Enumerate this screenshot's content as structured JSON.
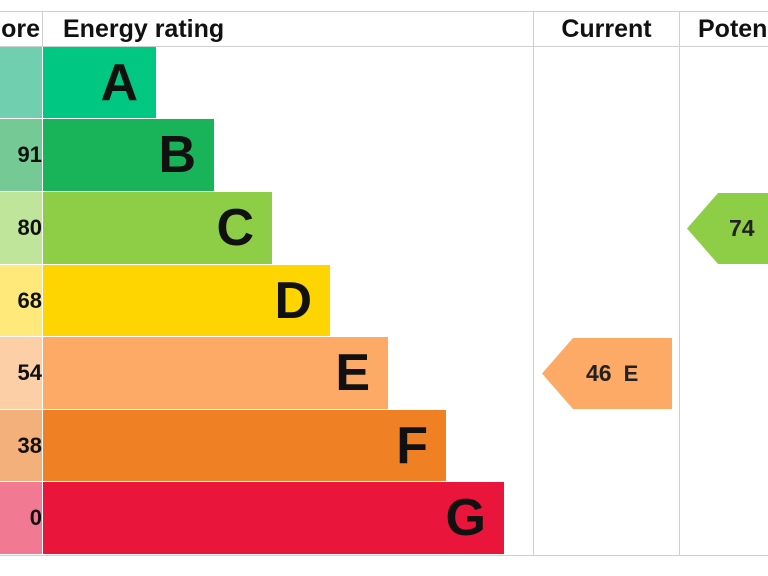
{
  "chart_data": {
    "type": "table",
    "headers": {
      "score": "ore",
      "rating": "Energy rating",
      "current": "Current",
      "potential": "Poten"
    },
    "bands": [
      {
        "letter": "A",
        "score": "",
        "color": "#00c781",
        "score_bg": "#6fcfae"
      },
      {
        "letter": "B",
        "score": "91",
        "color": "#19b459",
        "score_bg": "#74c994"
      },
      {
        "letter": "C",
        "score": "80",
        "color": "#8dce46",
        "score_bg": "#bfe59a"
      },
      {
        "letter": "D",
        "score": "68",
        "color": "#ffd500",
        "score_bg": "#ffe97a"
      },
      {
        "letter": "E",
        "score": "54",
        "color": "#fcaa65",
        "score_bg": "#fdcfa6"
      },
      {
        "letter": "F",
        "score": "38",
        "color": "#ef8023",
        "score_bg": "#f4b07a"
      },
      {
        "letter": "G",
        "score": "0",
        "color": "#e9153b",
        "score_bg": "#f17a92"
      }
    ],
    "current": {
      "value": "46",
      "band": "E",
      "color": "#fcaa65"
    },
    "potential": {
      "value": "74",
      "band": "C",
      "color": "#8dce46"
    }
  }
}
